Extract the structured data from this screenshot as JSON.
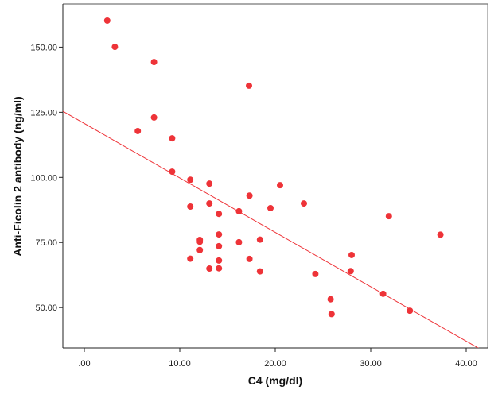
{
  "chart_data": {
    "type": "scatter",
    "title": "",
    "xlabel": "C4 (mg/dl)",
    "ylabel": "Anti-Ficolin 2 antibody (ng/ml)",
    "xlim": [
      -2.25,
      42.25
    ],
    "ylim": [
      34.5,
      166.6
    ],
    "xticks": [
      0,
      10,
      20,
      30,
      40
    ],
    "xtick_labels": [
      ".00",
      "10.00",
      "20.00",
      "30.00",
      "40.00"
    ],
    "yticks": [
      50,
      75,
      100,
      125,
      150
    ],
    "ytick_labels": [
      "50.00",
      "75.00",
      "100.00",
      "125.00",
      "150.00"
    ],
    "grid": false,
    "point_color": "#ee3338",
    "line_color": "#ee3338",
    "points": [
      [
        2.4,
        160.2
      ],
      [
        3.2,
        150.1
      ],
      [
        7.3,
        144.3
      ],
      [
        17.25,
        135.2
      ],
      [
        7.3,
        123.0
      ],
      [
        5.6,
        117.8
      ],
      [
        9.2,
        115.0
      ],
      [
        9.2,
        102.2
      ],
      [
        11.1,
        99.1
      ],
      [
        13.1,
        97.6
      ],
      [
        17.3,
        93.0
      ],
      [
        20.5,
        97.0
      ],
      [
        13.1,
        90.0
      ],
      [
        11.1,
        88.8
      ],
      [
        14.1,
        86.0
      ],
      [
        16.2,
        87.0
      ],
      [
        19.5,
        88.2
      ],
      [
        23.0,
        90.0
      ],
      [
        31.9,
        85.1
      ],
      [
        37.3,
        78.0
      ],
      [
        12.1,
        76.0
      ],
      [
        12.1,
        75.3
      ],
      [
        14.1,
        78.1
      ],
      [
        12.1,
        72.1
      ],
      [
        14.1,
        73.6
      ],
      [
        16.2,
        75.1
      ],
      [
        18.4,
        76.1
      ],
      [
        11.1,
        68.8
      ],
      [
        14.1,
        68.1
      ],
      [
        17.3,
        68.7
      ],
      [
        13.1,
        65.0
      ],
      [
        14.1,
        65.1
      ],
      [
        18.4,
        63.9
      ],
      [
        24.2,
        62.9
      ],
      [
        28.0,
        70.2
      ],
      [
        27.9,
        64.0
      ],
      [
        31.3,
        55.3
      ],
      [
        25.8,
        53.2
      ],
      [
        25.9,
        47.5
      ],
      [
        34.1,
        48.8
      ]
    ],
    "fit_line": {
      "intercept": 120.7,
      "slope": -2.09
    }
  }
}
